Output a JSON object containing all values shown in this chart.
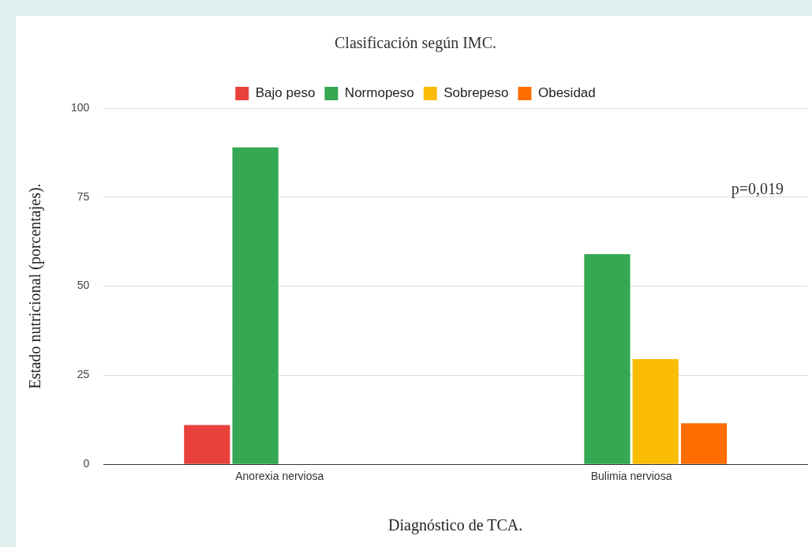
{
  "chart_data": {
    "type": "bar",
    "title": "Clasificación según IMC.",
    "xlabel": "Diagnóstico de TCA.",
    "ylabel": "Estado nutricional (porcentajes).",
    "categories": [
      "Anorexia nerviosa",
      "Bulimia nerviosa"
    ],
    "series": [
      {
        "name": "Bajo peso",
        "color": "#e8403a",
        "values": [
          11,
          0
        ]
      },
      {
        "name": "Normopeso",
        "color": "#34a853",
        "values": [
          89,
          59
        ]
      },
      {
        "name": "Sobrepeso",
        "color": "#fbbc05",
        "values": [
          0,
          29.5
        ]
      },
      {
        "name": "Obesidad",
        "color": "#ff6d01",
        "values": [
          0,
          11.5
        ]
      }
    ],
    "ylim": [
      0,
      100
    ],
    "yticks": [
      0,
      25,
      50,
      75,
      100
    ],
    "grid": "y",
    "legend": "top",
    "annotations": [
      "p=0,019"
    ]
  }
}
